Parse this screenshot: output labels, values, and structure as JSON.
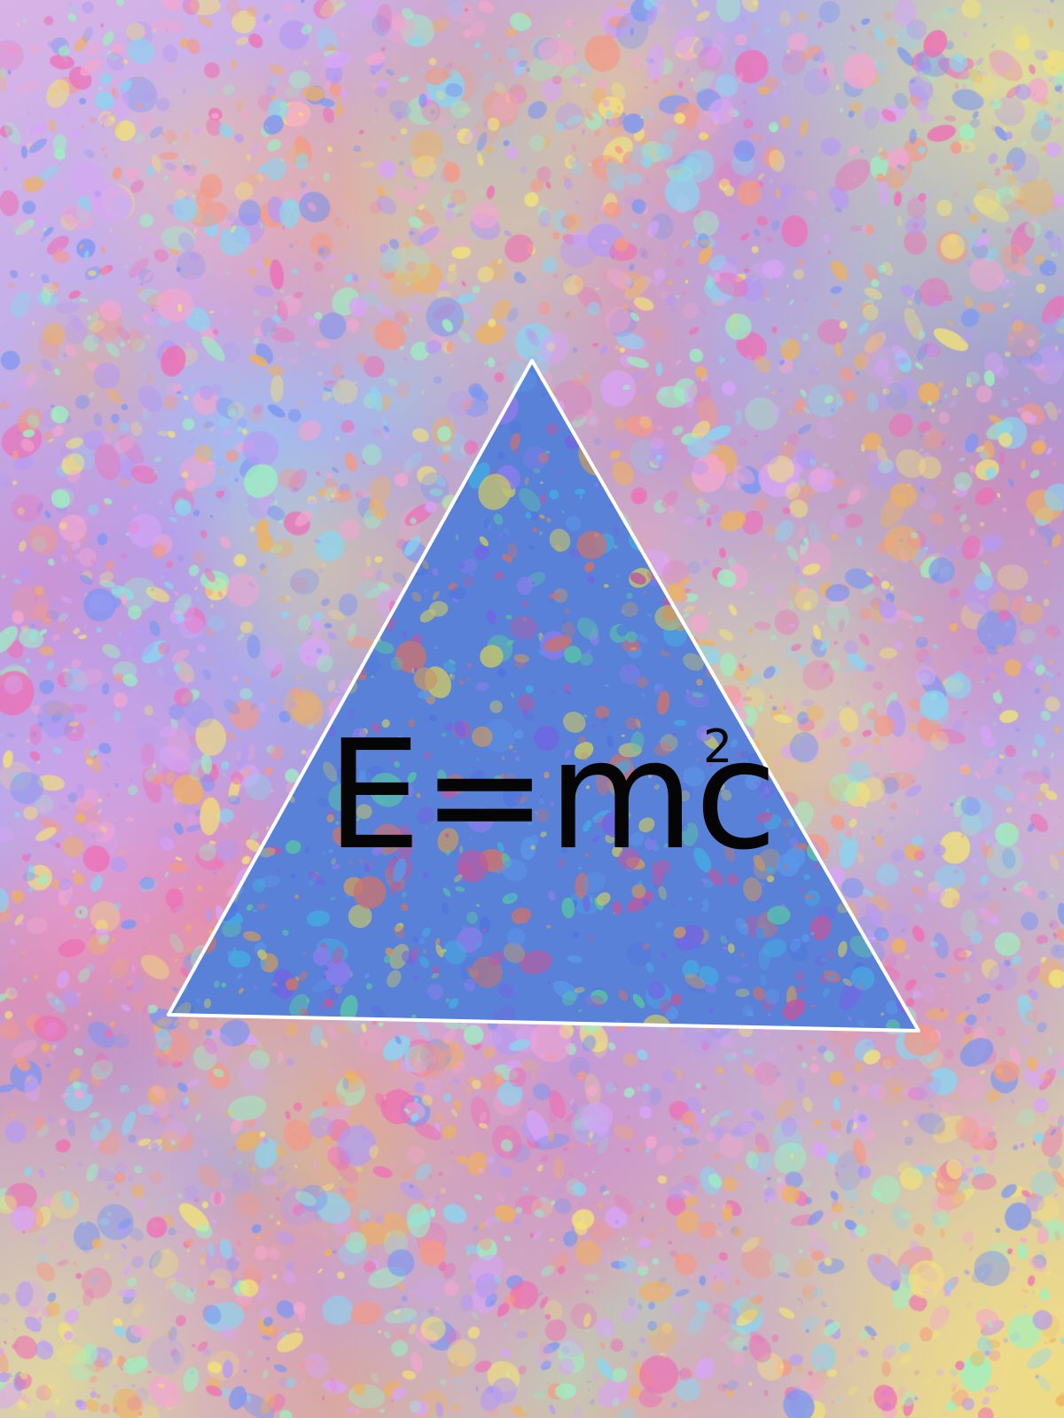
{
  "artwork": {
    "formula": {
      "base": "E=mc",
      "exponent": "2"
    },
    "colors": {
      "background_base": "#a9acee",
      "triangle_fill": "#5b82d8",
      "triangle_stroke": "#ffffff",
      "text": "#050505",
      "splatter_palette": [
        "#f3a7cf",
        "#b59bf2",
        "#8ad6f1",
        "#f2e27a",
        "#f49a86",
        "#9ef0c2",
        "#ee6fb5",
        "#7b96f2",
        "#f0b25f",
        "#d8a5f7"
      ]
    }
  }
}
